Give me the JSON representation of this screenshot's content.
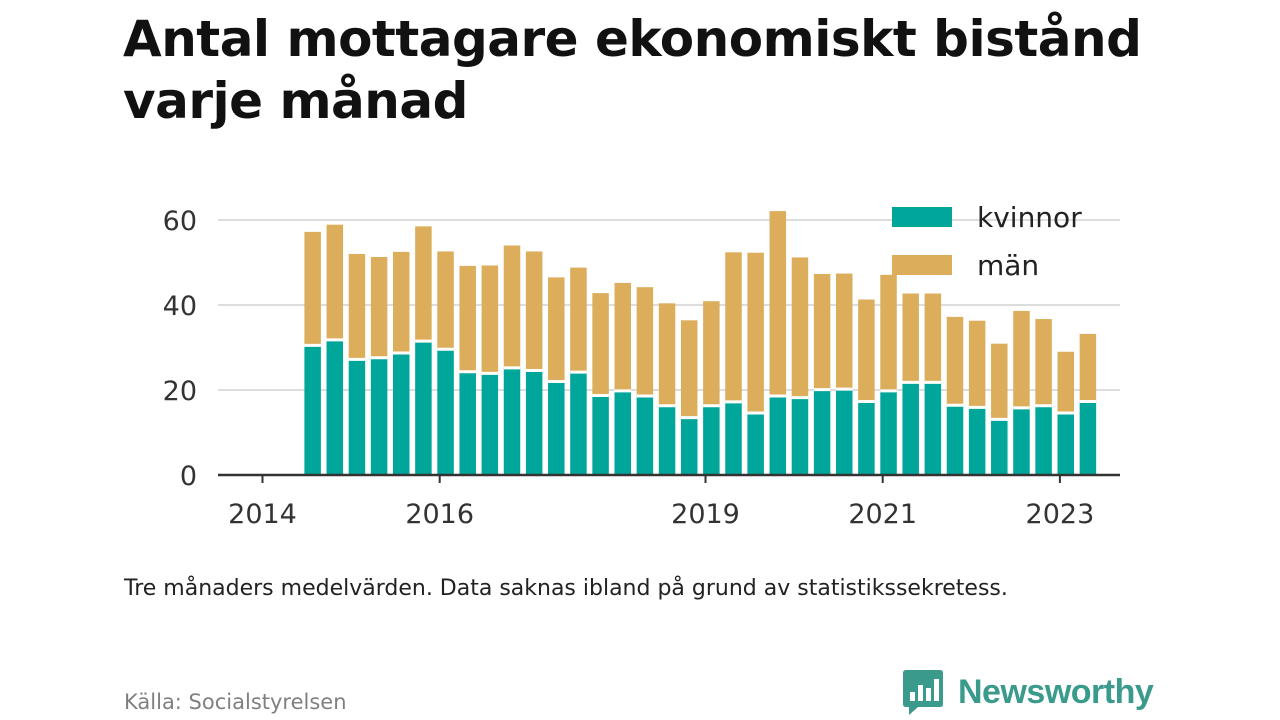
{
  "title": "Antal mottagare ekonomiskt bistånd varje månad",
  "note": "Tre månaders medelvärden. Data saknas ibland på grund av statistikssekretess.",
  "source": "Källa: Socialstyrelsen",
  "brand": "Newsworthy",
  "colors": {
    "kvinnor": "#00a699",
    "man": "#dcae5c",
    "grid": "#dddddd",
    "axis": "#333333",
    "brand": "#3a9a8c"
  },
  "chart_data": {
    "type": "bar",
    "stacked": true,
    "x_start": "2014-01",
    "period_months": 3,
    "x": [
      "2014-Q2",
      "2014-Q3",
      "2014-Q4",
      "2015-Q1",
      "2015-Q2",
      "2015-Q3",
      "2015-Q4",
      "2016-Q1",
      "2016-Q2",
      "2016-Q3",
      "2016-Q4",
      "2017-Q1",
      "2017-Q2",
      "2017-Q3",
      "2017-Q4",
      "2018-Q1",
      "2018-Q2",
      "2018-Q3",
      "2018-Q4",
      "2019-Q1",
      "2019-Q2",
      "2019-Q3",
      "2019-Q4",
      "2020-Q1",
      "2020-Q2",
      "2020-Q3",
      "2020-Q4",
      "2021-Q1",
      "2021-Q2",
      "2021-Q3",
      "2021-Q4",
      "2022-Q1",
      "2022-Q2",
      "2022-Q3",
      "2022-Q4",
      "2023-Q1"
    ],
    "series": [
      {
        "name": "kvinnor",
        "values": [
          30.5,
          31.8,
          27.2,
          27.6,
          28.7,
          31.5,
          29.6,
          24.3,
          23.9,
          25.2,
          24.6,
          22.0,
          24.2,
          18.7,
          19.8,
          18.6,
          16.3,
          13.5,
          16.3,
          17.2,
          14.6,
          18.6,
          18.2,
          20.1,
          20.2,
          17.3,
          19.8,
          21.8,
          21.8,
          16.4,
          15.9,
          13.1,
          15.8,
          16.3,
          14.6,
          17.3
        ]
      },
      {
        "name": "män",
        "values": [
          26.7,
          27.1,
          24.8,
          23.7,
          23.8,
          27.0,
          23.0,
          24.9,
          25.4,
          28.8,
          28.0,
          24.5,
          24.6,
          24.1,
          25.4,
          25.6,
          24.1,
          22.9,
          24.6,
          35.2,
          37.7,
          43.5,
          33.0,
          27.2,
          27.2,
          24.0,
          27.3,
          20.9,
          20.9,
          20.8,
          20.4,
          17.8,
          22.8,
          20.4,
          14.4,
          15.9
        ]
      }
    ],
    "legend": [
      "kvinnor",
      "män"
    ],
    "legend_position": "top-right",
    "y_ticks": [
      0,
      20,
      40,
      60
    ],
    "ylim": [
      0,
      64
    ],
    "x_tick_labels": [
      {
        "label": "2014",
        "year": 2014
      },
      {
        "label": "2016",
        "year": 2016
      },
      {
        "label": "2019",
        "year": 2019
      },
      {
        "label": "2021",
        "year": 2021
      },
      {
        "label": "2023",
        "year": 2023
      }
    ],
    "grid": true
  }
}
